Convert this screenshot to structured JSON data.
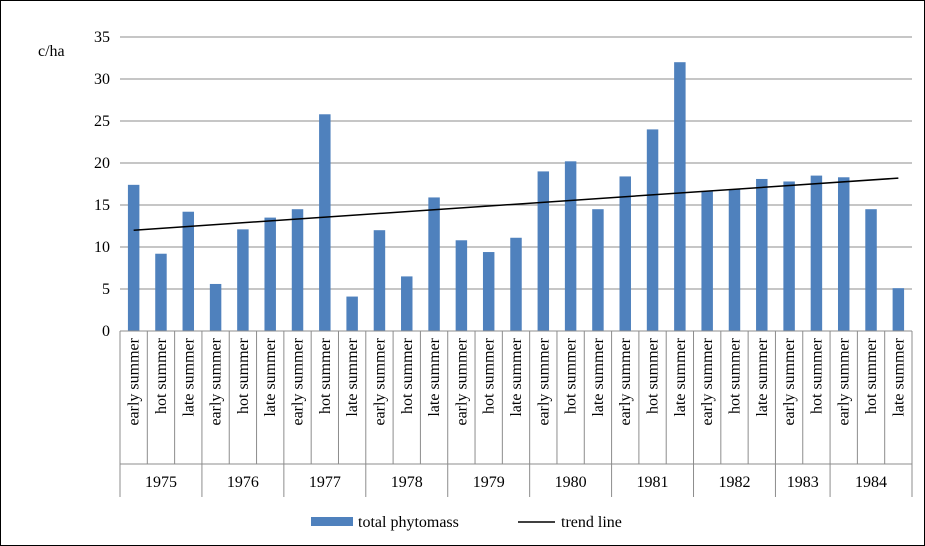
{
  "chart_data": {
    "type": "bar",
    "ylabel": "c/ha",
    "ylim": [
      0,
      35
    ],
    "yticks": [
      0,
      5,
      10,
      15,
      20,
      25,
      30,
      35
    ],
    "grid": true,
    "legend_position": "bottom",
    "categories": [
      "early summer",
      "hot summer",
      "late summer",
      "early summer",
      "hot summer",
      "late summer",
      "early summer",
      "hot summer",
      "late summer",
      "early summer",
      "hot summer",
      "late summer",
      "early summer",
      "hot summer",
      "late summer",
      "early summer",
      "hot summer",
      "late summer",
      "early summer",
      "hot summer",
      "late summer",
      "early summer",
      "hot summer",
      "late summer",
      "early summer",
      "hot summer",
      "early summer",
      "hot summer",
      "late summer"
    ],
    "groups": [
      {
        "label": "1975",
        "count": 3
      },
      {
        "label": "1976",
        "count": 3
      },
      {
        "label": "1977",
        "count": 3
      },
      {
        "label": "1978",
        "count": 3
      },
      {
        "label": "1979",
        "count": 3
      },
      {
        "label": "1980",
        "count": 3
      },
      {
        "label": "1981",
        "count": 3
      },
      {
        "label": "1982",
        "count": 3
      },
      {
        "label": "1983",
        "count": 2
      },
      {
        "label": "1984",
        "count": 3
      }
    ],
    "series": [
      {
        "name": "total phytomass",
        "type": "bar",
        "color": "#4F81BD",
        "values": [
          17.4,
          9.2,
          14.2,
          5.6,
          12.1,
          13.5,
          14.5,
          25.8,
          4.1,
          12.0,
          6.5,
          15.9,
          10.8,
          9.4,
          11.1,
          19.0,
          20.2,
          14.5,
          18.4,
          24.0,
          32.0,
          16.6,
          16.9,
          18.1,
          17.8,
          18.5,
          18.3,
          14.5,
          5.1
        ]
      },
      {
        "name": "trend line",
        "type": "line",
        "color": "#000000",
        "start": 12.0,
        "end": 18.2
      }
    ]
  }
}
